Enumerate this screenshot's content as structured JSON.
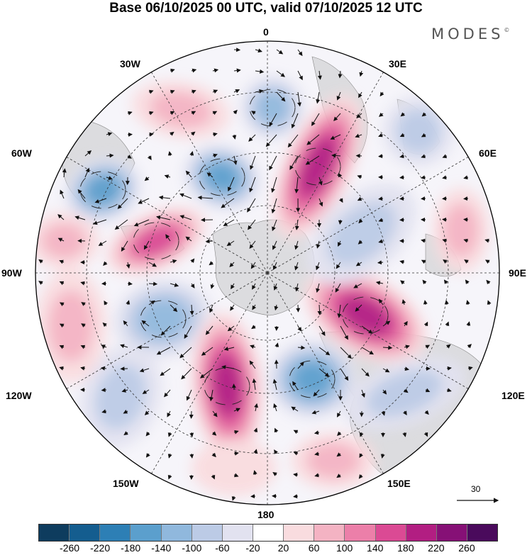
{
  "title": "Base 06/10/2025 00 UTC, valid 07/10/2025 12 UTC",
  "brand": "MODES",
  "brand_mark": "©",
  "longitude_labels": {
    "top": "0",
    "bottom": "180",
    "left": "90W",
    "right": "90E",
    "nw1": "30W",
    "nw2": "60W",
    "ne1": "30E",
    "ne2": "60E",
    "sw1": "120W",
    "sw2": "150W",
    "se1": "120E",
    "se2": "150E"
  },
  "vector_reference": "30",
  "colorbar": {
    "ticks": [
      "-260",
      "-220",
      "-180",
      "-140",
      "-100",
      "-60",
      "-20",
      "20",
      "60",
      "100",
      "140",
      "180",
      "220",
      "260"
    ],
    "colors": [
      "#0e3c5e",
      "#145d8f",
      "#2d7fb5",
      "#5b9fcd",
      "#90b8dd",
      "#bccbe6",
      "#e2e2f0",
      "#ffffff",
      "#f9dcdf",
      "#f4b3c3",
      "#ec7fa9",
      "#db4a94",
      "#b21e82",
      "#861076",
      "#4a0a5c"
    ]
  }
}
